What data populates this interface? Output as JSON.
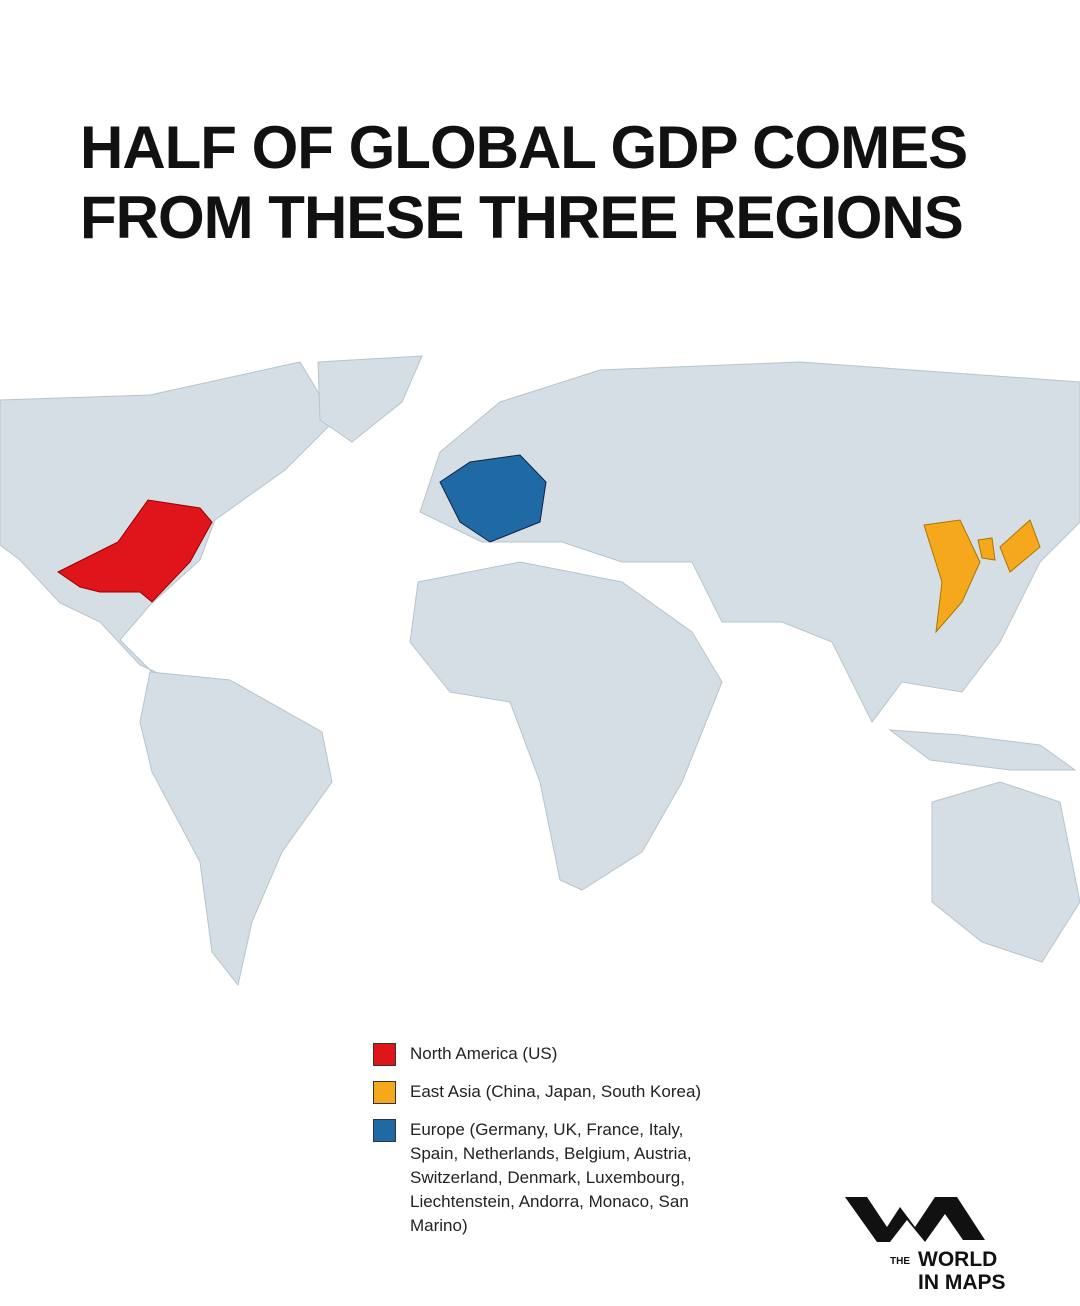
{
  "title": [
    "HALF OF GLOBAL GDP COMES",
    "FROM THESE THREE REGIONS"
  ],
  "legend": {
    "items": [
      {
        "label": "North America (US)",
        "color": "#e0141b"
      },
      {
        "label": "East Asia (China, Japan, South Korea)",
        "color": "#f5a81c"
      },
      {
        "label": "Europe (Germany, UK, France, Italy, Spain, Netherlands, Belgium, Austria, Switzerland, Denmark, Luxembourg, Liechtenstein, Andorra, Monaco, San Marino)",
        "color": "#1f6aa5"
      }
    ]
  },
  "logo": {
    "small": "THE",
    "line1": "WORLD",
    "line2": "IN MAPS"
  }
}
